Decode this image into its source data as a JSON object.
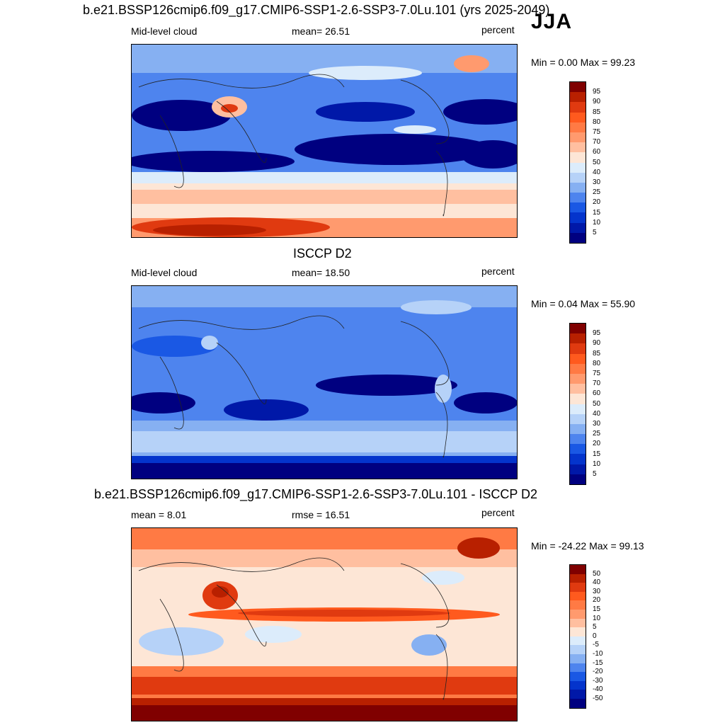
{
  "season": "JJA",
  "panel1": {
    "title": "b.e21.BSSP126cmip6.f09_g17.CMIP6-SSP1-2.6-SSP3-7.0Lu.101 (yrs 2025-2049)",
    "left_label": "Mid-level cloud",
    "center_label": "mean=  26.51",
    "units": "percent",
    "minmax": "Min =    0.00 Max =  99.23"
  },
  "panel2": {
    "title": "ISCCP D2",
    "left_label": "Mid-level cloud",
    "center_label": "mean=  18.50",
    "units": "percent",
    "minmax": "Min =    0.04 Max =  55.90"
  },
  "panel3": {
    "title": "b.e21.BSSP126cmip6.f09_g17.CMIP6-SSP1-2.6-SSP3-7.0Lu.101 - ISCCP D2",
    "left_label": "mean =    8.01",
    "center_label": "rmse =  16.51",
    "units": "percent",
    "minmax": "Min = -24.22 Max =  99.13"
  },
  "colorbar_abs": {
    "ticks": [
      "95",
      "90",
      "85",
      "80",
      "75",
      "70",
      "60",
      "50",
      "40",
      "30",
      "25",
      "20",
      "15",
      "10",
      "5"
    ],
    "colors": [
      "#800000",
      "#b82000",
      "#e03a10",
      "#ff5a1e",
      "#ff7a44",
      "#ff9a6e",
      "#ffbfa0",
      "#fde6d6",
      "#dcecfb",
      "#b6d2f8",
      "#86b0f2",
      "#4e84ee",
      "#1a58e4",
      "#0434cc",
      "#0018a8",
      "#000080"
    ]
  },
  "colorbar_diff": {
    "ticks": [
      "50",
      "40",
      "30",
      "20",
      "15",
      "10",
      "5",
      "0",
      "-5",
      "-10",
      "-15",
      "-20",
      "-30",
      "-40",
      "-50"
    ],
    "colors": [
      "#800000",
      "#b82000",
      "#e03a10",
      "#ff5a1e",
      "#ff7a44",
      "#ff9a6e",
      "#ffbfa0",
      "#fde6d6",
      "#dcecfb",
      "#b6d2f8",
      "#86b0f2",
      "#4e84ee",
      "#1a58e4",
      "#0434cc",
      "#0018a8",
      "#000080"
    ]
  }
}
